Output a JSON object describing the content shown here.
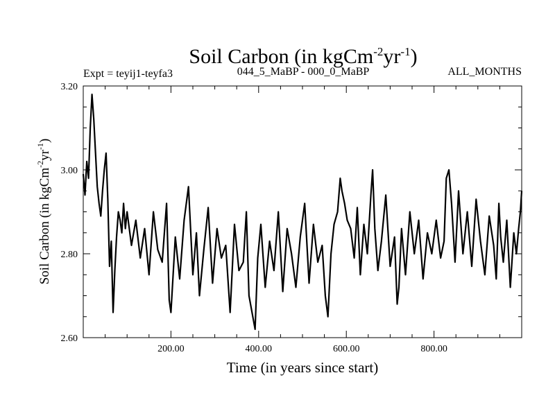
{
  "chart_data": {
    "type": "line",
    "title": "Soil Carbon (in kgCm",
    "title_sup1": "-2",
    "title_mid": "yr",
    "title_sup2": "-1",
    "title_end": ")",
    "subtitle_left": "Expt = teyij1-teyfa3",
    "subtitle_center": "044_5_MaBP - 000_0_MaBP",
    "subtitle_right": "ALL_MONTHS",
    "xlabel": "Time (in years since start)",
    "ylabel": "Soil Carbon (in kgCm",
    "ylabel_sup1": "-2",
    "ylabel_mid": "yr",
    "ylabel_sup2": "-1",
    "ylabel_end": ")",
    "xlim": [
      0,
      1000
    ],
    "ylim": [
      2.6,
      3.2
    ],
    "x_ticks": [
      {
        "value": 200,
        "label": "200.00"
      },
      {
        "value": 400,
        "label": "400.00"
      },
      {
        "value": 600,
        "label": "600.00"
      },
      {
        "value": 800,
        "label": "800.00"
      }
    ],
    "y_ticks": [
      {
        "value": 2.6,
        "label": "2.60"
      },
      {
        "value": 2.8,
        "label": "2.80"
      },
      {
        "value": 3.0,
        "label": "3.00"
      },
      {
        "value": 3.2,
        "label": "3.20"
      }
    ],
    "series": [
      {
        "name": "Soil Carbon",
        "color": "#000000",
        "x": [
          0,
          4,
          8,
          12,
          16,
          20,
          24,
          28,
          32,
          36,
          40,
          44,
          48,
          52,
          56,
          60,
          64,
          68,
          72,
          76,
          80,
          84,
          88,
          92,
          96,
          100,
          110,
          120,
          130,
          140,
          150,
          160,
          170,
          180,
          190,
          196,
          200,
          210,
          220,
          230,
          240,
          250,
          258,
          265,
          275,
          285,
          295,
          305,
          315,
          325,
          335,
          345,
          355,
          365,
          372,
          378,
          385,
          392,
          398,
          405,
          415,
          425,
          435,
          445,
          455,
          465,
          475,
          485,
          495,
          505,
          515,
          525,
          535,
          545,
          552,
          558,
          565,
          572,
          580,
          586,
          590,
          596,
          602,
          610,
          618,
          625,
          632,
          640,
          648,
          656,
          660,
          665,
          672,
          680,
          690,
          700,
          710,
          716,
          720,
          726,
          735,
          745,
          755,
          765,
          775,
          785,
          795,
          805,
          815,
          823,
          828,
          834,
          840,
          848,
          856,
          866,
          876,
          886,
          896,
          906,
          916,
          926,
          936,
          942,
          948,
          952,
          958,
          966,
          974,
          982,
          988,
          993,
          997,
          1000
        ],
        "values": [
          2.99,
          2.94,
          3.02,
          2.98,
          3.1,
          3.18,
          3.12,
          3.04,
          2.96,
          2.92,
          2.89,
          2.95,
          3.0,
          3.04,
          2.93,
          2.77,
          2.83,
          2.66,
          2.76,
          2.84,
          2.9,
          2.88,
          2.85,
          2.92,
          2.86,
          2.9,
          2.82,
          2.88,
          2.79,
          2.86,
          2.75,
          2.9,
          2.81,
          2.78,
          2.92,
          2.69,
          2.66,
          2.84,
          2.74,
          2.88,
          2.96,
          2.75,
          2.85,
          2.7,
          2.81,
          2.91,
          2.73,
          2.86,
          2.79,
          2.82,
          2.66,
          2.87,
          2.76,
          2.78,
          2.9,
          2.7,
          2.66,
          2.62,
          2.79,
          2.87,
          2.72,
          2.83,
          2.76,
          2.9,
          2.71,
          2.86,
          2.8,
          2.72,
          2.84,
          2.92,
          2.73,
          2.87,
          2.78,
          2.82,
          2.7,
          2.65,
          2.8,
          2.87,
          2.9,
          2.98,
          2.95,
          2.92,
          2.88,
          2.86,
          2.79,
          2.91,
          2.75,
          2.87,
          2.8,
          2.94,
          3.0,
          2.86,
          2.76,
          2.83,
          2.94,
          2.77,
          2.84,
          2.68,
          2.72,
          2.86,
          2.75,
          2.9,
          2.8,
          2.88,
          2.74,
          2.85,
          2.8,
          2.88,
          2.79,
          2.83,
          2.98,
          3.0,
          2.92,
          2.78,
          2.95,
          2.8,
          2.9,
          2.77,
          2.93,
          2.83,
          2.75,
          2.89,
          2.82,
          2.74,
          2.92,
          2.84,
          2.78,
          2.88,
          2.72,
          2.85,
          2.8,
          2.86,
          2.9,
          2.95
        ]
      }
    ]
  }
}
